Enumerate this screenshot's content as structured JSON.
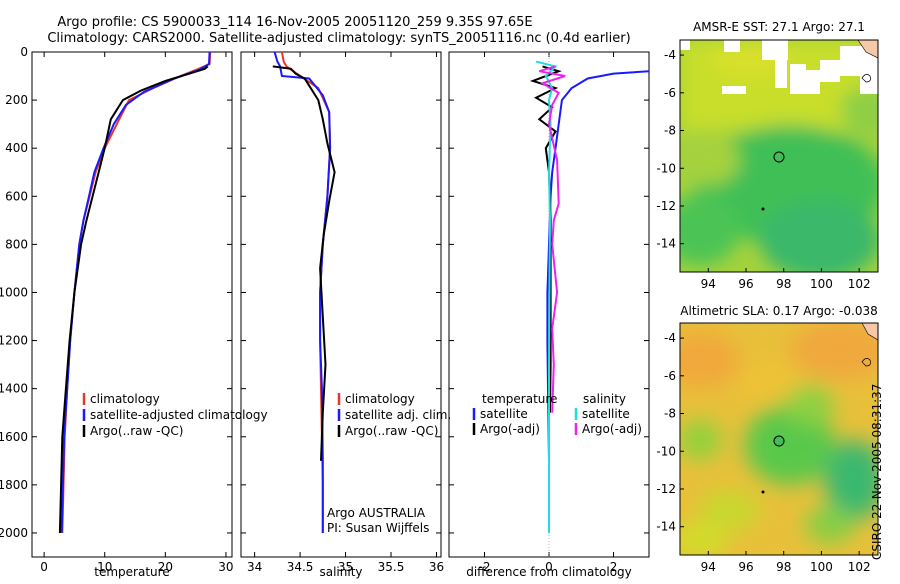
{
  "header": {
    "line1": "Argo profile: CS 5900033_114 16-Nov-2005 20051120_259 9.35S 97.65E",
    "line2": "Climatology: CARS2000. Satellite-adjusted climatology: synTS_20051116.nc (0.4d earlier)"
  },
  "footer_vertical": "CSIRO 22-Nov-2005 08:31:37",
  "colors": {
    "climatology": "#e8382a",
    "satellite": "#1a1aff",
    "argo": "#000000",
    "argo_adj": "#ee22ee",
    "satellite_cyan": "#22dddd"
  },
  "chart_data": [
    {
      "type": "line",
      "name": "temperature-profile",
      "xlabel": "temperature",
      "ylabel": "",
      "xlim": [
        -2,
        31
      ],
      "ylim": [
        2100,
        0
      ],
      "xticks": [
        0,
        10,
        20,
        30
      ],
      "yticks": [
        0,
        200,
        400,
        600,
        800,
        1000,
        1200,
        1400,
        1600,
        1800,
        2000
      ],
      "legend": [
        "climatology",
        "satellite-adjusted climatology",
        "Argo(..raw -QC)"
      ],
      "series": [
        {
          "name": "climatology",
          "color": "#e8382a",
          "x": [
            27.4,
            27.3,
            25.5,
            22.5,
            18.0,
            14.0,
            12.0,
            10.0,
            8.5,
            7.5,
            6.5,
            5.8,
            5.0,
            4.3,
            3.8,
            3.4,
            3.0
          ],
          "y": [
            0,
            50,
            70,
            100,
            150,
            200,
            300,
            400,
            500,
            600,
            700,
            800,
            1000,
            1200,
            1400,
            1600,
            2000
          ]
        },
        {
          "name": "satellite-adjusted climatology",
          "color": "#1a1aff",
          "x": [
            27.3,
            27.2,
            25.5,
            21.5,
            16.5,
            13.5,
            11.5,
            9.8,
            8.3,
            7.4,
            6.5,
            5.8,
            5.0,
            4.3,
            3.8,
            3.3,
            2.9
          ],
          "y": [
            0,
            50,
            75,
            110,
            165,
            220,
            300,
            400,
            500,
            600,
            700,
            800,
            1000,
            1200,
            1400,
            1600,
            2000
          ]
        },
        {
          "name": "Argo(..raw -QC)",
          "color": "#000000",
          "x": [
            27.0,
            26.5,
            24.0,
            20.0,
            16.0,
            13.0,
            11.0,
            10.0,
            9.2,
            8.0,
            7.0,
            6.1,
            5.0,
            4.2,
            3.6,
            3.0,
            2.6
          ],
          "y": [
            60,
            70,
            90,
            120,
            160,
            200,
            280,
            400,
            480,
            600,
            700,
            800,
            1000,
            1200,
            1400,
            1600,
            2000
          ]
        }
      ]
    },
    {
      "type": "line",
      "name": "salinity-profile",
      "xlabel": "salinity",
      "ylabel": "",
      "xlim": [
        33.85,
        36.05
      ],
      "ylim": [
        2100,
        0
      ],
      "xticks": [
        34,
        34.5,
        35,
        35.5,
        36
      ],
      "legend": [
        "climatology",
        "satellite adj. clim.",
        "Argo(..raw -QC)"
      ],
      "annotation": [
        "Argo AUSTRALIA",
        "PI: Susan Wijffels"
      ],
      "series": [
        {
          "name": "climatology",
          "color": "#e8382a",
          "x": [
            34.3,
            34.32,
            34.35,
            34.5,
            34.7,
            34.82,
            34.83,
            34.8,
            34.75,
            34.72,
            34.72,
            34.73,
            34.74,
            34.75,
            34.75
          ],
          "y": [
            0,
            40,
            60,
            100,
            150,
            250,
            400,
            600,
            800,
            1000,
            1200,
            1400,
            1600,
            1800,
            2000
          ]
        },
        {
          "name": "satellite adj. clim.",
          "color": "#1a1aff",
          "x": [
            34.22,
            34.25,
            34.28,
            34.3,
            34.6,
            34.75,
            34.82,
            34.83,
            34.8,
            34.75,
            34.72,
            34.72,
            34.74,
            34.75,
            34.75
          ],
          "y": [
            0,
            40,
            60,
            100,
            110,
            180,
            250,
            400,
            600,
            800,
            1000,
            1200,
            1400,
            1700,
            2000
          ]
        },
        {
          "name": "Argo(..raw -QC)",
          "color": "#000000",
          "x": [
            34.2,
            34.4,
            34.45,
            34.55,
            34.6,
            34.7,
            34.75,
            34.8,
            34.88,
            34.82,
            34.76,
            34.72,
            34.75,
            34.78,
            34.75,
            34.73
          ],
          "y": [
            60,
            70,
            90,
            110,
            140,
            200,
            280,
            380,
            500,
            620,
            760,
            900,
            1100,
            1300,
            1500,
            1700
          ]
        }
      ]
    },
    {
      "type": "line",
      "name": "difference-profile",
      "xlabel": "difference from climatology",
      "ylabel": "",
      "xlim": [
        -3.1,
        3.1
      ],
      "ylim": [
        2100,
        0
      ],
      "xticks": [
        -2,
        0,
        2
      ],
      "legend": [
        "temperature",
        "satellite",
        "Argo(-adj)",
        "salinity",
        "satellite",
        "Argo(-adj)"
      ],
      "series": [
        {
          "name": "temperature satellite",
          "color": "#1a1aff",
          "x": [
            3.1,
            2.0,
            1.2,
            0.7,
            0.4,
            0.3,
            0.2,
            0.1,
            0.05,
            0.0,
            -0.05,
            -0.05,
            -0.03,
            0.0,
            0.0
          ],
          "y": [
            80,
            90,
            110,
            150,
            200,
            300,
            400,
            500,
            600,
            800,
            1000,
            1200,
            1400,
            1700,
            2000
          ]
        },
        {
          "name": "temperature Argo(-adj)",
          "color": "#000000",
          "x": [
            -0.2,
            0.3,
            -0.5,
            0.2,
            -0.4,
            0.1,
            -0.3,
            0.2,
            -0.1,
            0.0,
            0.05,
            0.05,
            0.05,
            0.05,
            0.03
          ],
          "y": [
            60,
            80,
            120,
            150,
            190,
            230,
            280,
            330,
            400,
            500,
            700,
            900,
            1100,
            1300,
            1500
          ]
        },
        {
          "name": "salinity satellite",
          "color": "#22dddd",
          "x": [
            -0.4,
            0.2,
            -0.1,
            0.1,
            0.0,
            0.05,
            0.0,
            0.03,
            0.02,
            0.01,
            0.0,
            0.0,
            0.0
          ],
          "y": [
            40,
            60,
            100,
            150,
            200,
            300,
            500,
            700,
            900,
            1100,
            1300,
            1600,
            2000
          ]
        },
        {
          "name": "salinity Argo(-adj)",
          "color": "#ee22ee",
          "x": [
            0.2,
            -0.3,
            0.5,
            -0.2,
            0.3,
            0.1,
            0.0,
            0.25,
            0.3,
            0.15,
            0.1,
            0.25,
            0.1,
            0.15,
            0.1
          ],
          "y": [
            60,
            80,
            100,
            130,
            170,
            220,
            300,
            450,
            630,
            700,
            800,
            1000,
            1150,
            1300,
            1500
          ]
        }
      ]
    },
    {
      "type": "heatmap",
      "name": "amsr-sst-map",
      "title": "AMSR-E SST: 27.1 Argo: 27.1",
      "xlim": [
        92.5,
        103
      ],
      "ylim": [
        -15.5,
        -3.2
      ],
      "xticks": [
        94,
        96,
        98,
        100,
        102
      ],
      "yticks": [
        -4,
        -6,
        -8,
        -10,
        -12,
        -14
      ],
      "argo_location": {
        "lon": 97.65,
        "lat": -9.35
      }
    },
    {
      "type": "heatmap",
      "name": "altimetric-sla-map",
      "title": "Altimetric SLA: 0.17 Argo: -0.038",
      "xlim": [
        92.5,
        103
      ],
      "ylim": [
        -15.5,
        -3.2
      ],
      "xticks": [
        94,
        96,
        98,
        100,
        102
      ],
      "yticks": [
        -4,
        -6,
        -8,
        -10,
        -12,
        -14
      ],
      "argo_location": {
        "lon": 97.65,
        "lat": -9.35
      }
    }
  ]
}
